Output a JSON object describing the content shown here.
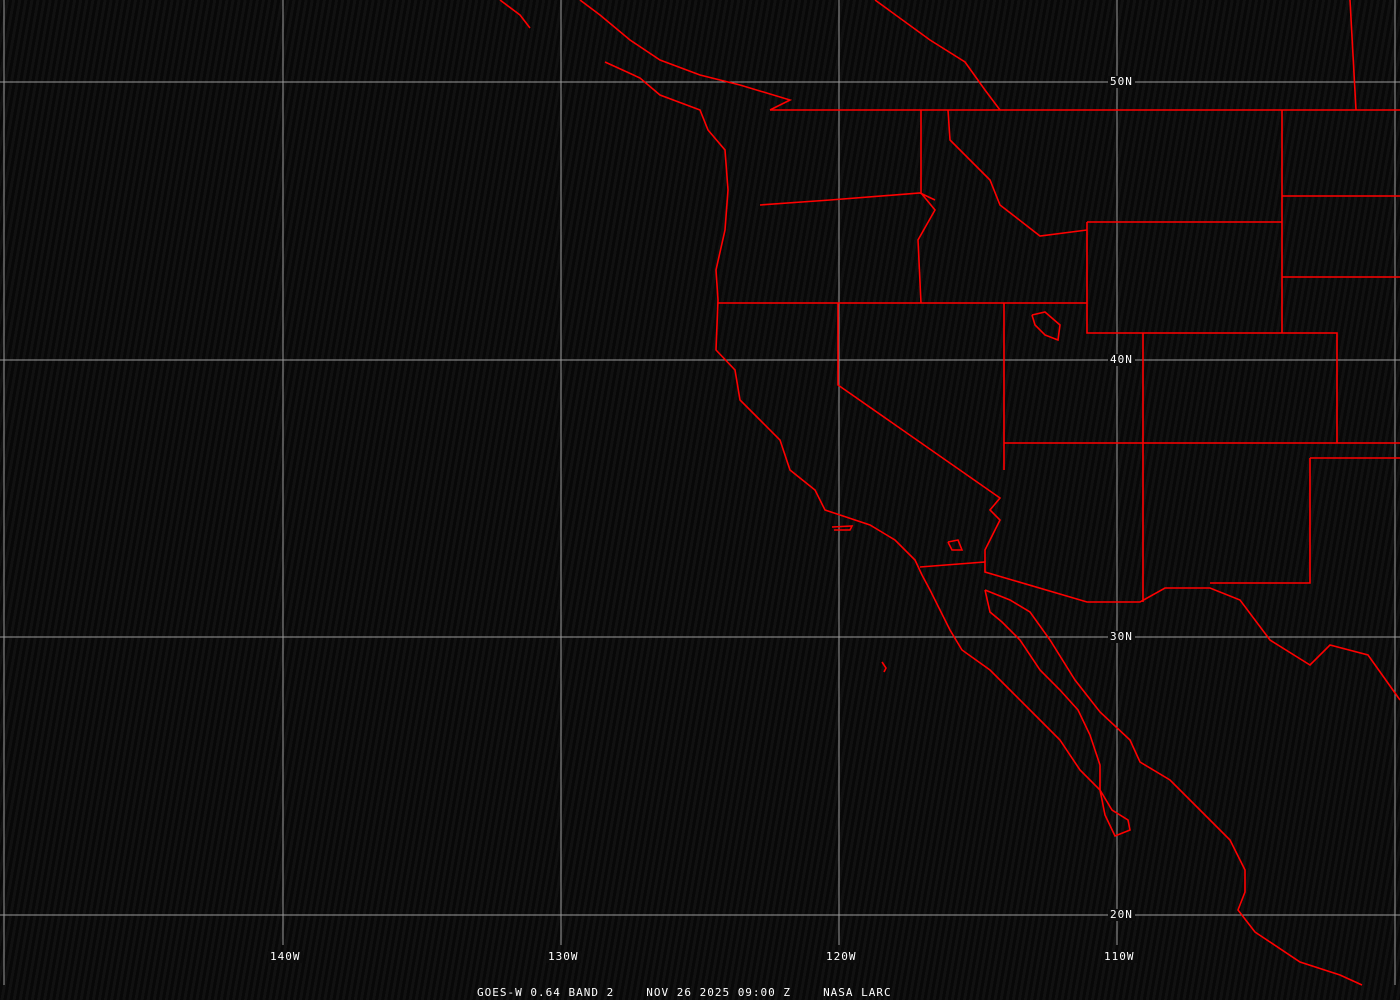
{
  "caption": {
    "satellite_band": "GOES-W 0.64 BAND 2",
    "datetime": "NOV 26 2025 09:00 Z",
    "source": "NASA LARC"
  },
  "latitude_labels": [
    "50N",
    "40N",
    "30N",
    "20N"
  ],
  "longitude_labels": [
    "140W",
    "130W",
    "120W",
    "110W"
  ],
  "colors": {
    "boundaries": "#ff0000",
    "grid": "#9a9a9a",
    "background": "#0c0c0c"
  }
}
